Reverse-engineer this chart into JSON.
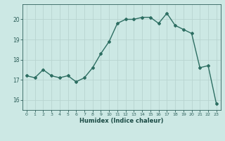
{
  "x": [
    0,
    1,
    2,
    3,
    4,
    5,
    6,
    7,
    8,
    9,
    10,
    11,
    12,
    13,
    14,
    15,
    16,
    17,
    18,
    19,
    20,
    21,
    22,
    23
  ],
  "y": [
    17.2,
    17.1,
    17.5,
    17.2,
    17.1,
    17.2,
    16.9,
    17.1,
    17.6,
    18.3,
    18.9,
    19.8,
    20.0,
    20.0,
    20.1,
    20.1,
    19.8,
    20.3,
    19.7,
    19.5,
    19.3,
    17.6,
    17.7,
    15.8
  ],
  "xlabel": "Humidex (Indice chaleur)",
  "ylim": [
    15.5,
    20.75
  ],
  "xlim": [
    -0.5,
    23.5
  ],
  "bg_color": "#cce8e4",
  "line_color": "#2d6e62",
  "grid_color": "#b8d4d0",
  "tick_color": "#2d5f5a",
  "label_color": "#1a4a44",
  "yticks": [
    16,
    17,
    18,
    19,
    20
  ],
  "xticks": [
    0,
    1,
    2,
    3,
    4,
    5,
    6,
    7,
    8,
    9,
    10,
    11,
    12,
    13,
    14,
    15,
    16,
    17,
    18,
    19,
    20,
    21,
    22,
    23
  ]
}
